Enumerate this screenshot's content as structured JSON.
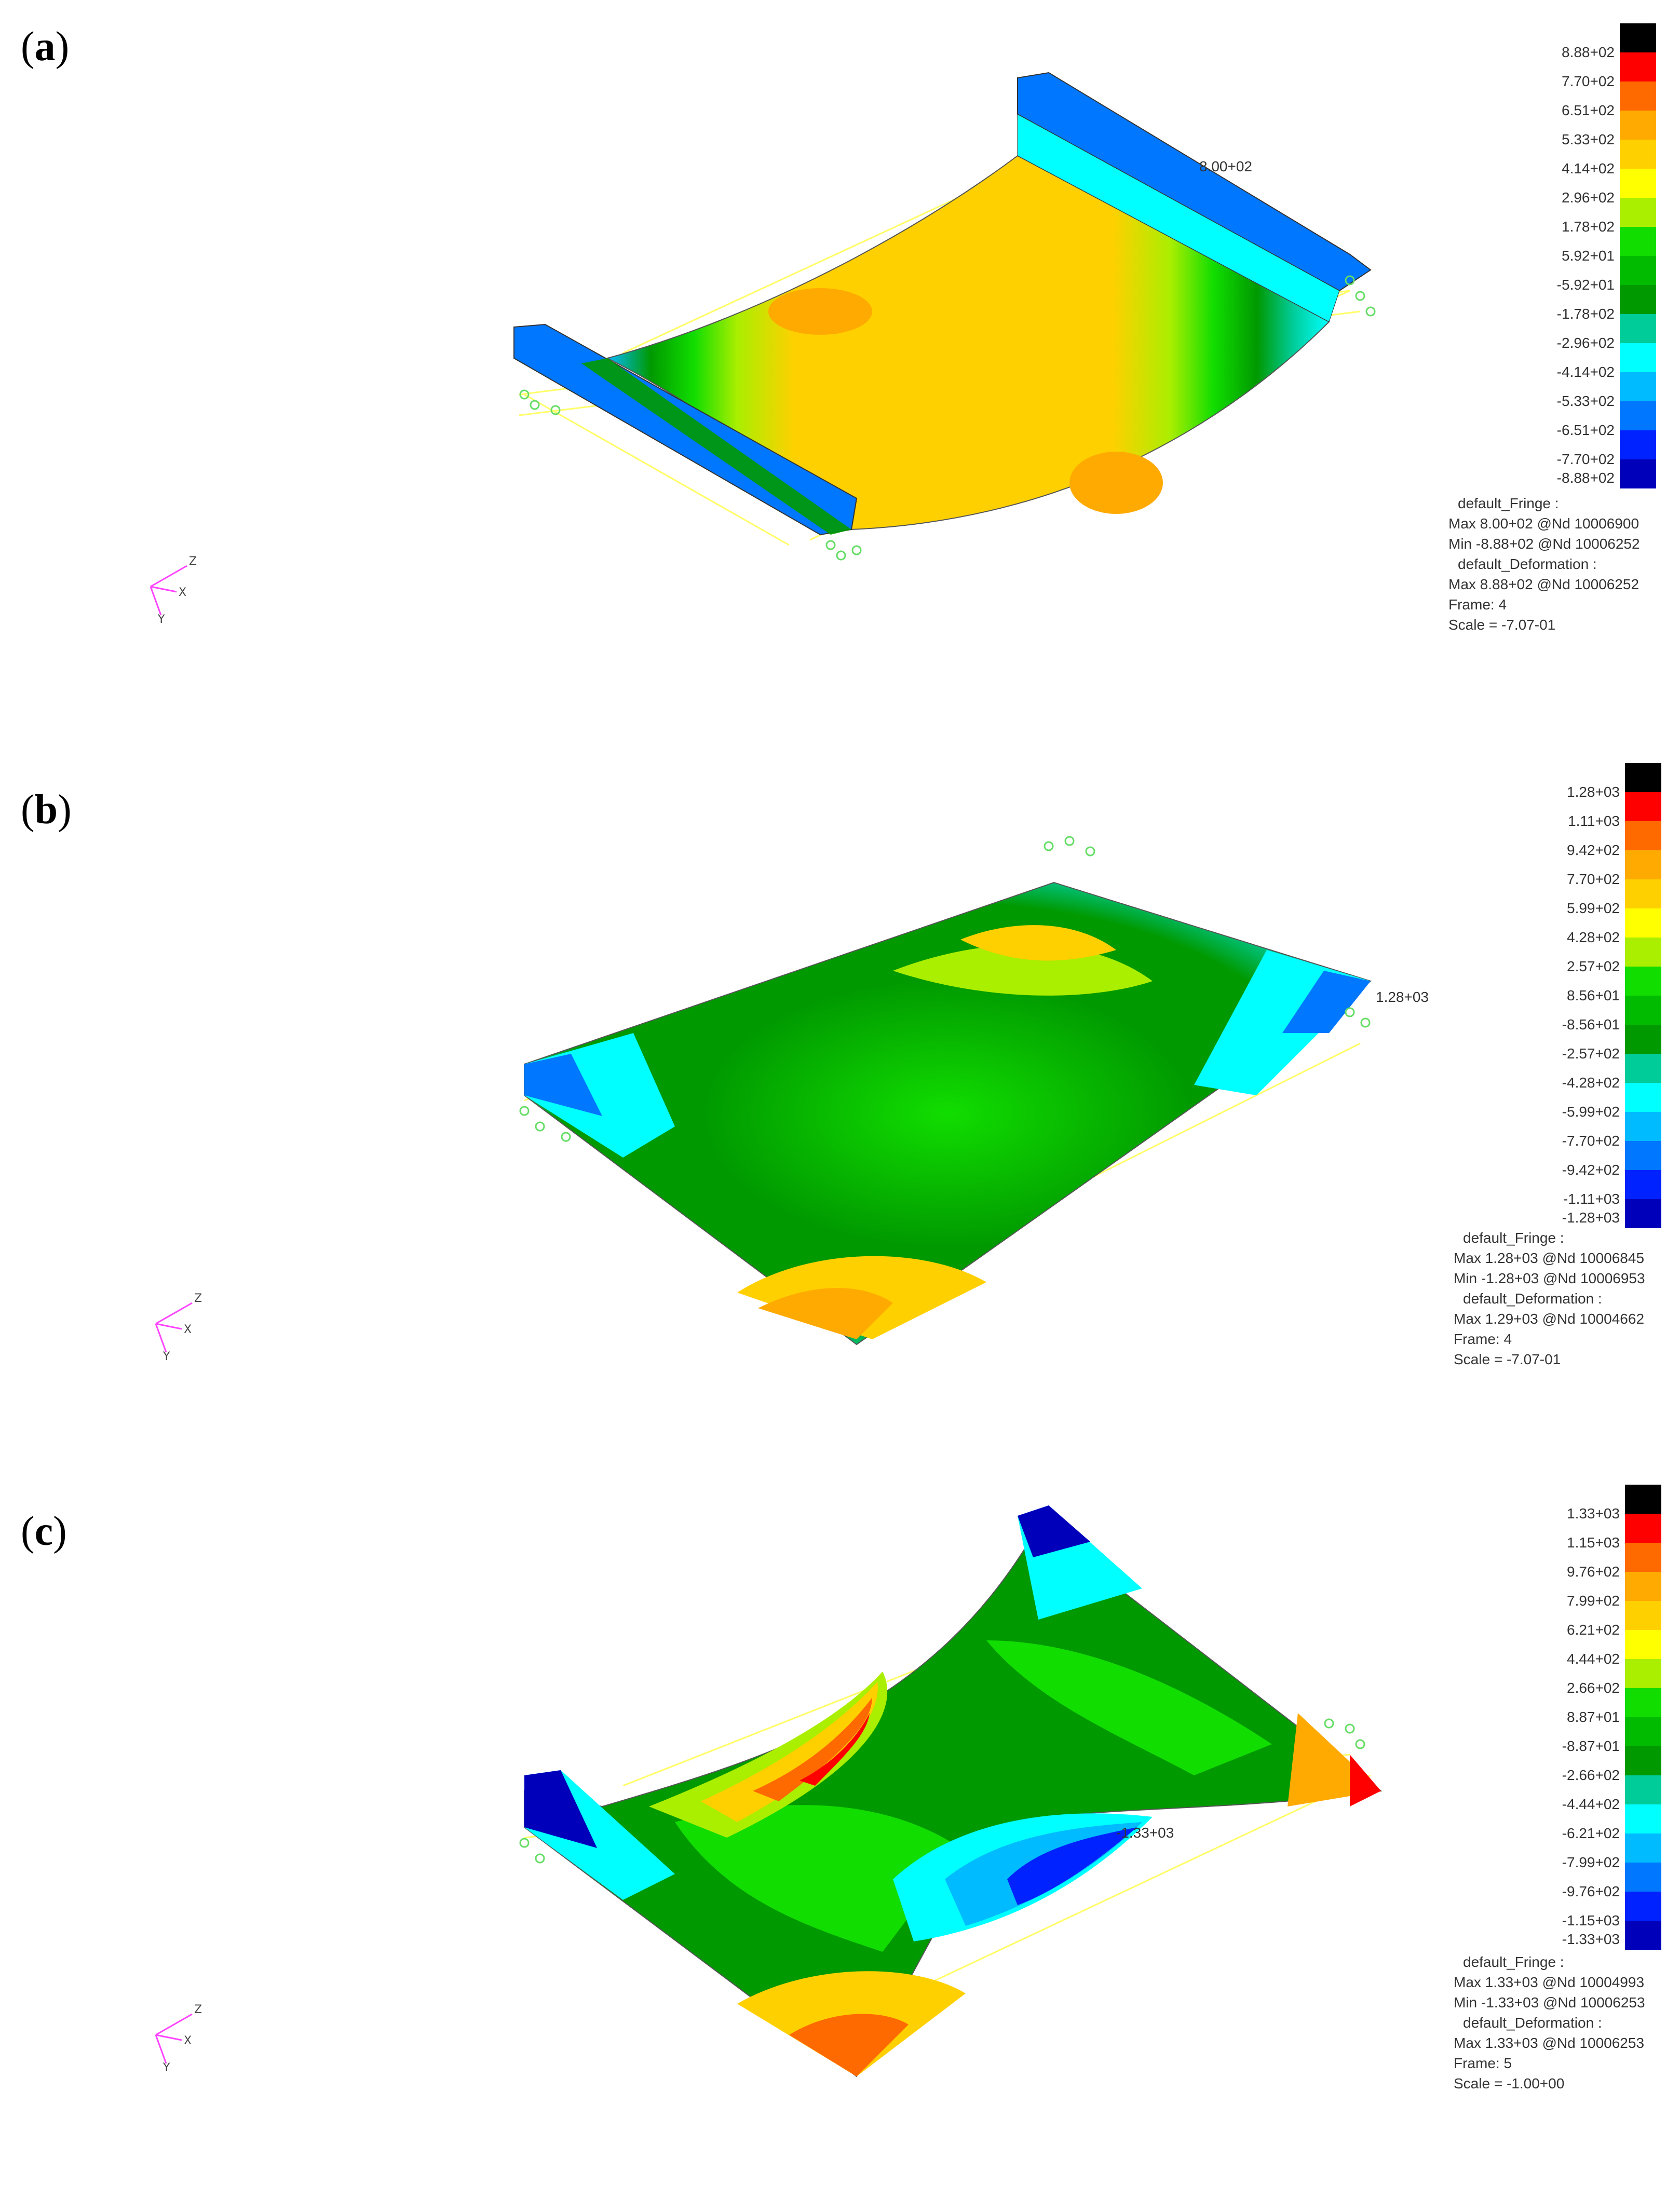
{
  "panels": [
    {
      "label": "a",
      "legend_ticks": [
        "8.88+02",
        "7.70+02",
        "6.51+02",
        "5.33+02",
        "4.14+02",
        "2.96+02",
        "1.78+02",
        "5.92+01",
        "-5.92+01",
        "-1.78+02",
        "-2.96+02",
        "-4.14+02",
        "-5.33+02",
        "-6.51+02",
        "-7.70+02",
        "-8.88+02"
      ],
      "info": {
        "fringe_title": "default_Fringe :",
        "fringe_max": "Max 8.00+02 @Nd 10006900",
        "fringe_min": "Min -8.88+02 @Nd 10006252",
        "deform_title": "default_Deformation :",
        "deform_max": "Max 8.88+02 @Nd 10006252",
        "frame": "Frame:    4",
        "scale": "Scale = -7.07-01"
      },
      "annotation": "8.00+02",
      "axes": {
        "x": "X",
        "y": "Y",
        "z": "Z"
      }
    },
    {
      "label": "b",
      "legend_ticks": [
        "1.28+03",
        "1.11+03",
        "9.42+02",
        "7.70+02",
        "5.99+02",
        "4.28+02",
        "2.57+02",
        "8.56+01",
        "-8.56+01",
        "-2.57+02",
        "-4.28+02",
        "-5.99+02",
        "-7.70+02",
        "-9.42+02",
        "-1.11+03",
        "-1.28+03"
      ],
      "info": {
        "fringe_title": "default_Fringe :",
        "fringe_max": "Max 1.28+03 @Nd 10006845",
        "fringe_min": "Min -1.28+03 @Nd 10006953",
        "deform_title": "default_Deformation :",
        "deform_max": "Max 1.29+03 @Nd 10004662",
        "frame": "Frame:    4",
        "scale": "Scale = -7.07-01"
      },
      "annotation": "1.28+03",
      "axes": {
        "x": "X",
        "y": "Y",
        "z": "Z"
      }
    },
    {
      "label": "c",
      "legend_ticks": [
        "1.33+03",
        "1.15+03",
        "9.76+02",
        "7.99+02",
        "6.21+02",
        "4.44+02",
        "2.66+02",
        "8.87+01",
        "-8.87+01",
        "-2.66+02",
        "-4.44+02",
        "-6.21+02",
        "-7.99+02",
        "-9.76+02",
        "-1.15+03",
        "-1.33+03"
      ],
      "info": {
        "fringe_title": "default_Fringe :",
        "fringe_max": "Max 1.33+03 @Nd 10004993",
        "fringe_min": "Min -1.33+03 @Nd 10006253",
        "deform_title": "default_Deformation :",
        "deform_max": "Max 1.33+03 @Nd 10006253",
        "frame": "Frame:    5",
        "scale": "Scale = -1.00+00"
      },
      "annotation": "-1.33+03",
      "axes": {
        "x": "X",
        "y": "Y",
        "z": "Z"
      }
    }
  ],
  "colors": {
    "fringe": [
      "#000000",
      "#ff0000",
      "#ff6a00",
      "#ffaa00",
      "#ffd000",
      "#ffff00",
      "#aaee00",
      "#11dd00",
      "#00bb00",
      "#009900",
      "#00cc99",
      "#00ffff",
      "#00bbff",
      "#0077ff",
      "#0022ff",
      "#0000bb"
    ],
    "wire": "#ffff66",
    "nodes": "#66dd66",
    "triad": "#ff44ff"
  }
}
